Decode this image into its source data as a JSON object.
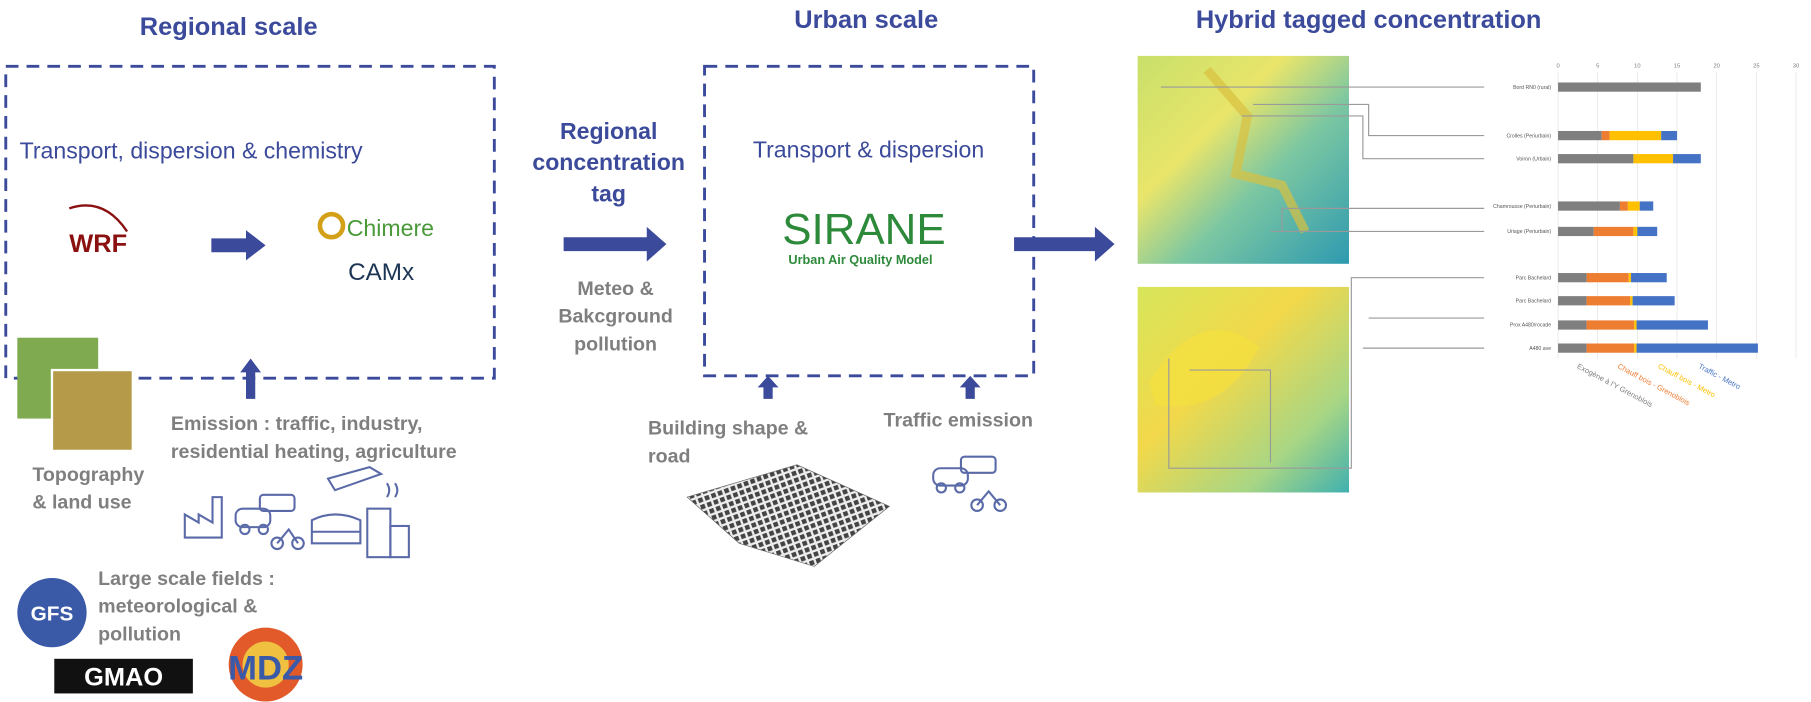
{
  "regional": {
    "title": "Regional scale",
    "process": "Transport, dispersion & chemistry",
    "models": [
      "WRF",
      "Chimere",
      "CAMx"
    ],
    "emission": [
      "Emission : traffic, industry,",
      "residential heating, agriculture"
    ],
    "topography": [
      "Topography",
      "& land use"
    ],
    "large_scale": [
      "Large scale fields :",
      "meteorological &",
      "pollution"
    ],
    "sources": [
      "GFS",
      "GMAO",
      "MDZ"
    ]
  },
  "coupling": {
    "tag": [
      "Regional",
      "concentration",
      "tag"
    ],
    "inputs": [
      "Meteo  &",
      "Bakcground",
      "pollution"
    ]
  },
  "urban": {
    "title": "Urban scale",
    "process": "Transport & dispersion",
    "model": "SIRANE",
    "model_subtitle": "Urban Air Quality Model",
    "building": [
      "Building shape &",
      "road"
    ],
    "traffic": "Traffic emission"
  },
  "hybrid": {
    "title": "Hybrid tagged concentration",
    "inset_chart": {
      "type": "bar",
      "orientation": "horizontal",
      "stacked": true,
      "categories": [
        "Bord RN0 (rural)",
        "Crolles (Periurbain)",
        "Voiron (Urbain)",
        "Chamrousse (Periurbain)",
        "Uriage (Periurbain)",
        "Parc Bachelard",
        "Parc Bachelard",
        "Prox A480/rocade",
        "A480 ave"
      ],
      "xlim": [
        0,
        30
      ],
      "xticks": [
        0,
        5,
        10,
        15,
        20,
        25,
        30
      ],
      "series": [
        {
          "name": "Exogène à l'Y Grenoblois",
          "color": "#7f7f7f",
          "values": [
            18,
            5.5,
            9.5,
            7.8,
            4.5,
            3.6,
            3.6,
            3.6,
            3.6
          ]
        },
        {
          "name": "Chauff bois - Grenoblois",
          "color": "#ed7d31",
          "values": [
            0,
            1,
            0,
            1,
            5,
            5.3,
            5.5,
            6,
            6
          ]
        },
        {
          "name": "Chauff bois - Metro",
          "color": "#ffc000",
          "values": [
            0,
            6.5,
            5,
            1.5,
            0.5,
            0.3,
            0.3,
            0.3,
            0.3
          ]
        },
        {
          "name": "Traffic - Metro",
          "color": "#4472c4",
          "values": [
            0,
            2,
            3.5,
            1.7,
            2.5,
            4.5,
            5.3,
            9,
            15.3
          ]
        }
      ]
    }
  }
}
